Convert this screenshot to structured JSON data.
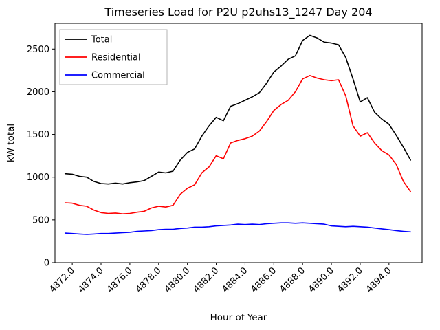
{
  "chart_data": {
    "type": "line",
    "title": "Timeseries Load for P2U p2uhs13_1247  Day 204",
    "xlabel": "Hour of Year",
    "ylabel": "kW total",
    "xlim": [
      4870.8,
      4896.3
    ],
    "ylim": [
      0,
      2800
    ],
    "xticks": [
      4872.0,
      4874.0,
      4876.0,
      4878.0,
      4880.0,
      4882.0,
      4884.0,
      4886.0,
      4888.0,
      4890.0,
      4892.0,
      4894.0
    ],
    "yticks": [
      0,
      500,
      1000,
      1500,
      2000,
      2500
    ],
    "grid": false,
    "legend_position": "upper-left",
    "x": [
      4871.5,
      4872.0,
      4872.5,
      4873.0,
      4873.5,
      4874.0,
      4874.5,
      4875.0,
      4875.5,
      4876.0,
      4876.5,
      4877.0,
      4877.5,
      4878.0,
      4878.5,
      4879.0,
      4879.5,
      4880.0,
      4880.5,
      4881.0,
      4881.5,
      4882.0,
      4882.5,
      4883.0,
      4883.5,
      4884.0,
      4884.5,
      4885.0,
      4885.5,
      4886.0,
      4886.5,
      4887.0,
      4887.5,
      4888.0,
      4888.5,
      4889.0,
      4889.5,
      4890.0,
      4890.5,
      4891.0,
      4891.5,
      4892.0,
      4892.5,
      4893.0,
      4893.5,
      4894.0,
      4894.5,
      4895.0,
      4895.5
    ],
    "series": [
      {
        "name": "Total",
        "color": "#000000",
        "values": [
          1040,
          1035,
          1010,
          1000,
          950,
          925,
          920,
          930,
          920,
          935,
          945,
          960,
          1010,
          1060,
          1050,
          1070,
          1200,
          1290,
          1330,
          1480,
          1600,
          1700,
          1660,
          1830,
          1860,
          1900,
          1940,
          1990,
          2100,
          2230,
          2300,
          2380,
          2420,
          2600,
          2660,
          2630,
          2580,
          2570,
          2550,
          2400,
          2150,
          1880,
          1930,
          1760,
          1680,
          1620,
          1490,
          1350,
          1200
        ]
      },
      {
        "name": "Residential",
        "color": "#ff0000",
        "values": [
          700,
          695,
          670,
          660,
          615,
          585,
          575,
          580,
          570,
          575,
          590,
          600,
          640,
          660,
          650,
          670,
          800,
          870,
          910,
          1050,
          1120,
          1250,
          1215,
          1400,
          1430,
          1450,
          1480,
          1540,
          1650,
          1780,
          1850,
          1900,
          2000,
          2150,
          2190,
          2160,
          2140,
          2130,
          2140,
          1950,
          1600,
          1480,
          1520,
          1400,
          1310,
          1260,
          1150,
          950,
          830
        ]
      },
      {
        "name": "Commercial",
        "color": "#0000ff",
        "values": [
          345,
          340,
          335,
          330,
          335,
          340,
          340,
          345,
          350,
          355,
          365,
          370,
          375,
          385,
          390,
          390,
          400,
          405,
          415,
          415,
          420,
          430,
          435,
          440,
          450,
          445,
          450,
          445,
          455,
          460,
          465,
          465,
          460,
          465,
          460,
          455,
          450,
          430,
          425,
          420,
          425,
          420,
          415,
          405,
          395,
          385,
          375,
          365,
          360
        ]
      }
    ]
  }
}
